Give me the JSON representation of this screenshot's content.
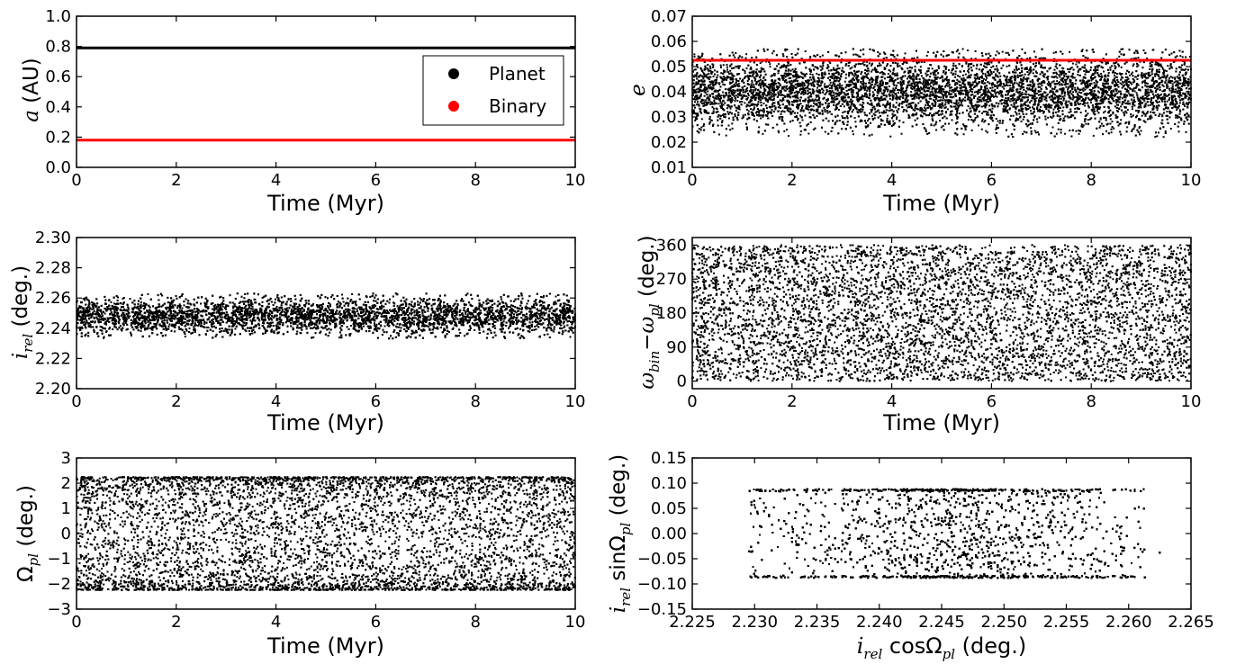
{
  "chart_data": [
    {
      "id": "p1",
      "type": "line",
      "xlabel": "Time (Myr)",
      "ylabel": "a (AU)",
      "xlim": [
        0,
        10
      ],
      "ylim": [
        0,
        1.0
      ],
      "xticks": [
        "0",
        "2",
        "4",
        "6",
        "8",
        "10"
      ],
      "yticks": [
        "0.0",
        "0.2",
        "0.4",
        "0.6",
        "0.8",
        "1.0"
      ],
      "legend": {
        "position": "center-right",
        "entries": [
          {
            "label": "Planet",
            "color": "#000000"
          },
          {
            "label": "Binary",
            "color": "#ff0000"
          }
        ]
      },
      "series": [
        {
          "name": "Planet",
          "color": "#000000",
          "x": [
            0,
            10
          ],
          "y": [
            0.79,
            0.79
          ]
        },
        {
          "name": "Binary",
          "color": "#ff0000",
          "x": [
            0,
            10
          ],
          "y": [
            0.18,
            0.18
          ]
        }
      ]
    },
    {
      "id": "p2",
      "type": "scatter",
      "xlabel": "Time (Myr)",
      "ylabel": "e",
      "xlim": [
        0,
        10
      ],
      "ylim": [
        0.01,
        0.07
      ],
      "xticks": [
        "0",
        "2",
        "4",
        "6",
        "8",
        "10"
      ],
      "yticks": [
        "0.01",
        "0.02",
        "0.03",
        "0.04",
        "0.05",
        "0.06",
        "0.07"
      ],
      "scatter_band": {
        "x_range": [
          0,
          10
        ],
        "y_range": [
          0.022,
          0.057
        ],
        "dense_center": 0.04,
        "n_points": 9000
      },
      "hline": {
        "y": 0.0525,
        "color": "#ff0000"
      }
    },
    {
      "id": "p3",
      "type": "scatter",
      "xlabel": "Time (Myr)",
      "ylabel": "i_rel (deg.)",
      "xlim": [
        0,
        10
      ],
      "ylim": [
        2.2,
        2.3
      ],
      "xticks": [
        "0",
        "2",
        "4",
        "6",
        "8",
        "10"
      ],
      "yticks": [
        "2.20",
        "2.22",
        "2.24",
        "2.26",
        "2.28",
        "2.30"
      ],
      "scatter_band": {
        "x_range": [
          0,
          10
        ],
        "y_range": [
          2.233,
          2.263
        ],
        "dense_center": 2.248,
        "n_points": 9000
      }
    },
    {
      "id": "p4",
      "type": "scatter",
      "xlabel": "Time (Myr)",
      "ylabel": "ω_bin − ω_pl (deg.)",
      "xlim": [
        0,
        10
      ],
      "ylim": [
        -20,
        380
      ],
      "xticks": [
        "0",
        "2",
        "4",
        "6",
        "8",
        "10"
      ],
      "yticks": [
        "0",
        "90",
        "180",
        "270",
        "360"
      ],
      "scatter_band": {
        "x_range": [
          0,
          10
        ],
        "y_range": [
          0,
          360
        ],
        "n_points": 9000
      }
    },
    {
      "id": "p5",
      "type": "scatter",
      "xlabel": "Time (Myr)",
      "ylabel": "Ω_pl (deg.)",
      "xlim": [
        0,
        10
      ],
      "ylim": [
        -3,
        3
      ],
      "xticks": [
        "0",
        "2",
        "4",
        "6",
        "8",
        "10"
      ],
      "yticks": [
        "−3",
        "−2",
        "−1",
        "0",
        "1",
        "2",
        "3"
      ],
      "scatter_band": {
        "x_range": [
          0,
          10
        ],
        "y_range": [
          -2.24,
          2.24
        ],
        "edge_concentrated": true,
        "n_points": 9000
      }
    },
    {
      "id": "p6",
      "type": "scatter",
      "xlabel": "i_rel cosΩ_pl (deg.)",
      "ylabel": "i_rel sinΩ_pl (deg.)",
      "xlim": [
        2.225,
        2.265
      ],
      "ylim": [
        -0.15,
        0.15
      ],
      "xticks": [
        "2.225",
        "2.230",
        "2.235",
        "2.240",
        "2.245",
        "2.250",
        "2.255",
        "2.260",
        "2.265"
      ],
      "yticks": [
        "−0.15",
        "−0.10",
        "−0.05",
        "0.00",
        "0.05",
        "0.10",
        "0.15"
      ],
      "scatter_band": {
        "x_range": [
          2.2285,
          2.2635
        ],
        "y_range": [
          -0.088,
          0.088
        ],
        "dense_center": 2.247,
        "n_points": 11000
      }
    }
  ]
}
